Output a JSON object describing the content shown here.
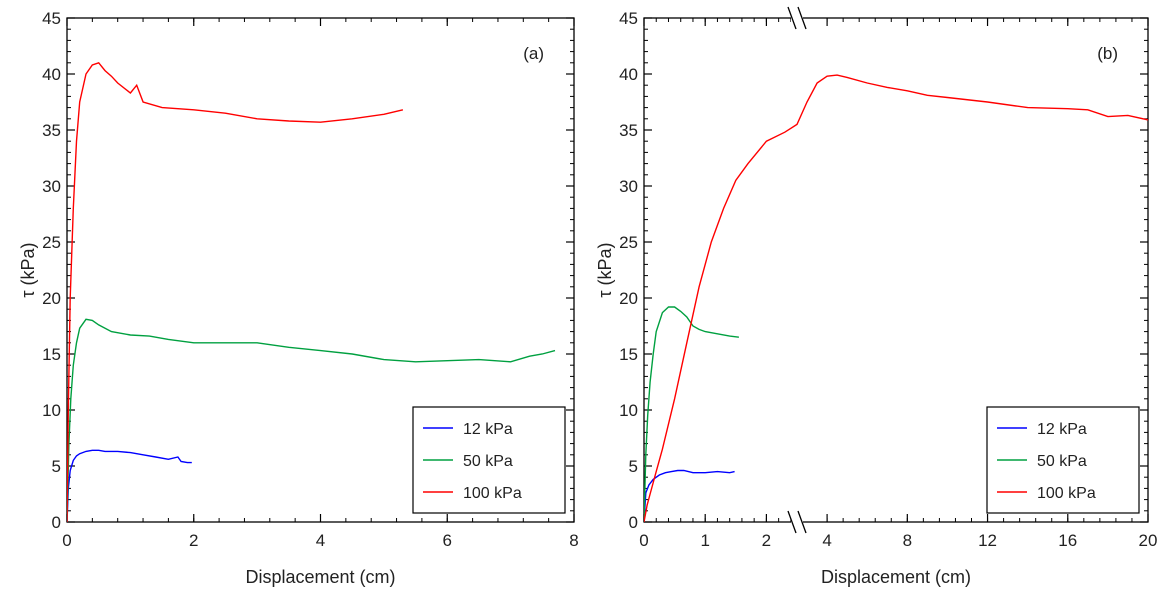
{
  "chart_data": [
    {
      "type": "line",
      "panel_label": "(a)",
      "xlabel": "Displacement (cm)",
      "ylabel": "τ (kPa)",
      "xlim": [
        0,
        8
      ],
      "ylim": [
        0,
        45
      ],
      "xticks": [
        0,
        2,
        4,
        6,
        8
      ],
      "yticks": [
        0,
        5,
        10,
        15,
        20,
        25,
        30,
        35,
        40,
        45
      ],
      "legend_position": "bottom-right",
      "series": [
        {
          "name": "12 kPa",
          "color": "#0000ff",
          "x": [
            0,
            0.02,
            0.05,
            0.1,
            0.15,
            0.2,
            0.3,
            0.4,
            0.5,
            0.6,
            0.8,
            1.0,
            1.2,
            1.4,
            1.6,
            1.75,
            1.8,
            1.9,
            1.97
          ],
          "y": [
            0,
            3,
            4.6,
            5.5,
            5.9,
            6.1,
            6.3,
            6.4,
            6.4,
            6.3,
            6.3,
            6.2,
            6.0,
            5.8,
            5.6,
            5.8,
            5.4,
            5.3,
            5.3
          ]
        },
        {
          "name": "50 kPa",
          "color": "#00a040",
          "x": [
            0,
            0.03,
            0.06,
            0.1,
            0.15,
            0.2,
            0.3,
            0.4,
            0.5,
            0.7,
            1.0,
            1.3,
            1.6,
            2.0,
            2.5,
            3.0,
            3.5,
            4.0,
            4.5,
            5.0,
            5.5,
            6.0,
            6.5,
            7.0,
            7.3,
            7.5,
            7.7
          ],
          "y": [
            0,
            7,
            11,
            14,
            16,
            17.3,
            18.1,
            18.0,
            17.6,
            17.0,
            16.7,
            16.6,
            16.3,
            16.0,
            16.0,
            16.0,
            15.6,
            15.3,
            15.0,
            14.5,
            14.3,
            14.4,
            14.5,
            14.3,
            14.8,
            15.0,
            15.3
          ]
        },
        {
          "name": "100 kPa",
          "color": "#ff0000",
          "x": [
            0,
            0.02,
            0.05,
            0.1,
            0.15,
            0.2,
            0.3,
            0.4,
            0.5,
            0.6,
            0.7,
            0.8,
            1.0,
            1.1,
            1.2,
            1.5,
            2.0,
            2.5,
            3.0,
            3.5,
            4.0,
            4.5,
            5.0,
            5.3
          ],
          "y": [
            0,
            10,
            20,
            28,
            34,
            37.5,
            40,
            40.8,
            41.0,
            40.3,
            39.8,
            39.2,
            38.3,
            39.0,
            37.5,
            37.0,
            36.8,
            36.5,
            36.0,
            35.8,
            35.7,
            36.0,
            36.4,
            36.8
          ]
        }
      ]
    },
    {
      "type": "line",
      "panel_label": "(b)",
      "xlabel": "Displacement (cm)",
      "ylabel": "τ (kPa)",
      "x_axis_break": {
        "left_range": [
          0,
          2.5
        ],
        "right_range": [
          2.5,
          20
        ]
      },
      "xticks": [
        0,
        1,
        2,
        4,
        8,
        12,
        16,
        20
      ],
      "ylim": [
        0,
        45
      ],
      "yticks": [
        0,
        5,
        10,
        15,
        20,
        25,
        30,
        35,
        40,
        45
      ],
      "legend_position": "bottom-right",
      "series": [
        {
          "name": "12 kPa",
          "color": "#0000ff",
          "x": [
            0,
            0.03,
            0.08,
            0.15,
            0.25,
            0.35,
            0.45,
            0.55,
            0.65,
            0.8,
            1.0,
            1.2,
            1.4,
            1.48
          ],
          "y": [
            0,
            2.6,
            3.3,
            3.8,
            4.2,
            4.4,
            4.5,
            4.6,
            4.6,
            4.4,
            4.4,
            4.5,
            4.4,
            4.5
          ]
        },
        {
          "name": "50 kPa",
          "color": "#00a040",
          "x": [
            0,
            0.03,
            0.06,
            0.1,
            0.15,
            0.2,
            0.3,
            0.4,
            0.5,
            0.6,
            0.7,
            0.8,
            0.9,
            1.0,
            1.2,
            1.4,
            1.55
          ],
          "y": [
            0,
            6,
            9.5,
            12.5,
            15,
            17,
            18.7,
            19.2,
            19.2,
            18.8,
            18.3,
            17.5,
            17.2,
            17.0,
            16.8,
            16.6,
            16.5
          ]
        },
        {
          "name": "100 kPa",
          "color": "#ff0000",
          "x": [
            0,
            0.05,
            0.1,
            0.2,
            0.3,
            0.5,
            0.7,
            0.9,
            1.1,
            1.3,
            1.5,
            1.7,
            2.0,
            2.3,
            2.5,
            3.0,
            3.5,
            4.0,
            4.5,
            5.0,
            6.0,
            7.0,
            8.0,
            9.0,
            10.0,
            12.0,
            14.0,
            16.0,
            17.0,
            18.0,
            19.0,
            20.0
          ],
          "y": [
            0,
            1.5,
            2.5,
            4.5,
            6.5,
            11,
            16,
            21,
            25,
            28,
            30.5,
            32,
            34,
            34.8,
            35.5,
            37.5,
            39.2,
            39.8,
            39.9,
            39.7,
            39.2,
            38.8,
            38.5,
            38.1,
            37.9,
            37.5,
            37.0,
            36.9,
            36.8,
            36.2,
            36.3,
            35.9
          ]
        }
      ]
    }
  ]
}
